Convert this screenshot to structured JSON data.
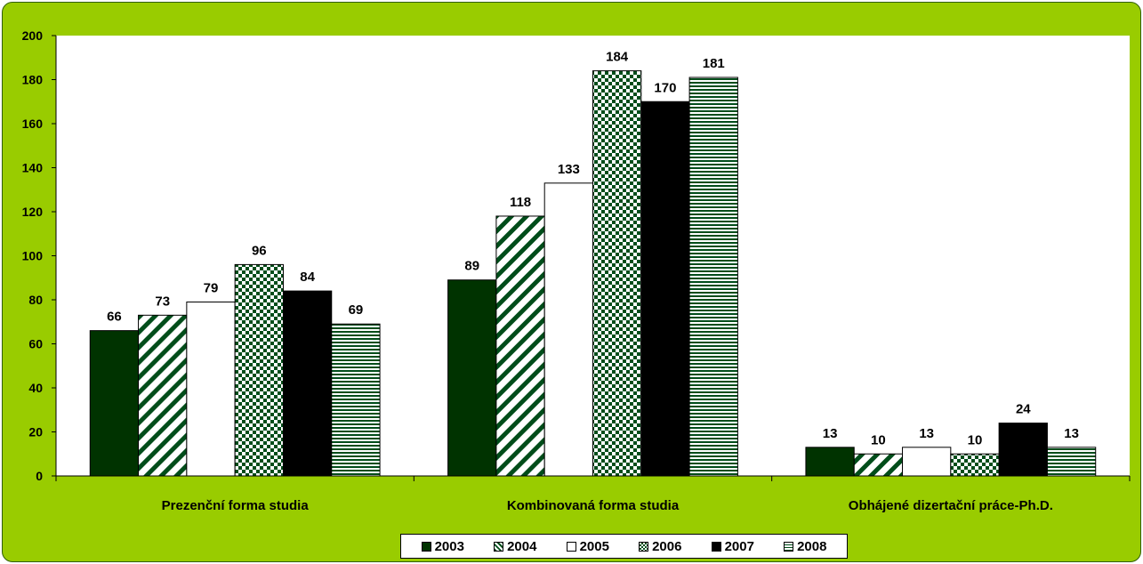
{
  "chart_data": {
    "type": "bar",
    "title": "",
    "xlabel": "",
    "ylabel": "",
    "ylim": [
      0,
      200
    ],
    "ytick_step": 20,
    "yticks": [
      "0",
      "20",
      "40",
      "60",
      "80",
      "100",
      "120",
      "140",
      "160",
      "180",
      "200"
    ],
    "grid": false,
    "legend_position": "bottom",
    "categories": [
      "Prezenční forma studia",
      "Kombinovaná forma studia",
      "Obhájené dizertační práce-Ph.D."
    ],
    "series": [
      {
        "name": "2003",
        "values": [
          66,
          89,
          13
        ],
        "pattern": "solid-dark-green",
        "color": "#003300"
      },
      {
        "name": "2004",
        "values": [
          73,
          118,
          10
        ],
        "pattern": "diagonal-stripes",
        "color": "#004d1a"
      },
      {
        "name": "2005",
        "values": [
          79,
          133,
          13
        ],
        "pattern": "white",
        "color": "#ffffff"
      },
      {
        "name": "2006",
        "values": [
          96,
          184,
          10
        ],
        "pattern": "checkerboard",
        "color": "#004d1a"
      },
      {
        "name": "2007",
        "values": [
          84,
          170,
          24
        ],
        "pattern": "solid-black",
        "color": "#000000"
      },
      {
        "name": "2008",
        "values": [
          69,
          181,
          13
        ],
        "pattern": "horizontal-stripes",
        "color": "#004d1a"
      }
    ]
  },
  "colors": {
    "frame_background": "#99cc00",
    "plot_background": "#ffffff"
  }
}
